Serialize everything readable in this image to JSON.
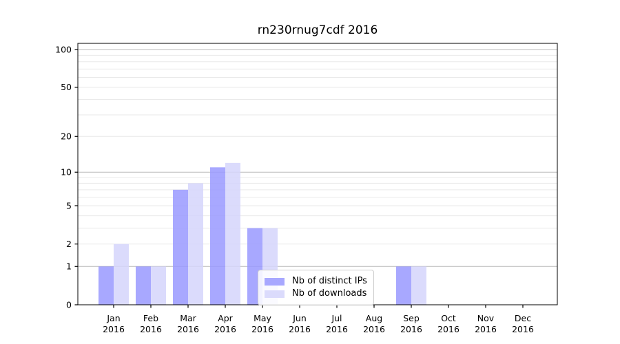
{
  "figure": {
    "background": "#ffffff",
    "text_color": "#000000"
  },
  "chart_data": {
    "type": "bar",
    "title": "rn230rnug7cdf 2016",
    "x": {
      "months": [
        "Jan",
        "Feb",
        "Mar",
        "Apr",
        "May",
        "Jun",
        "Jul",
        "Aug",
        "Sep",
        "Oct",
        "Nov",
        "Dec"
      ],
      "year": "2016"
    },
    "series": [
      {
        "name": "Nb of distinct IPs",
        "color": "#9999ff",
        "opacity": 0.85,
        "values": [
          1,
          1,
          7,
          11,
          3,
          0,
          0,
          0,
          1,
          0,
          0,
          0
        ]
      },
      {
        "name": "Nb of downloads",
        "color": "#d5d5fb",
        "opacity": 0.85,
        "values": [
          2,
          1,
          8,
          12,
          3,
          0,
          0,
          0,
          1,
          0,
          0,
          0
        ]
      }
    ],
    "yscale": "log1p",
    "ylim": [
      0,
      112
    ],
    "ytick_labels": [
      0,
      1,
      2,
      5,
      10,
      20,
      50,
      100
    ],
    "grid_major": [
      1,
      10,
      100
    ],
    "grid_minor": [
      2,
      3,
      4,
      5,
      6,
      7,
      8,
      9,
      20,
      30,
      40,
      50,
      60,
      70,
      80,
      90
    ],
    "grid_major_color": "#b8b8b8",
    "grid_minor_color": "#e9e9e9",
    "axis_color": "#000000",
    "grid_on": true,
    "legend_position": "lower center"
  }
}
